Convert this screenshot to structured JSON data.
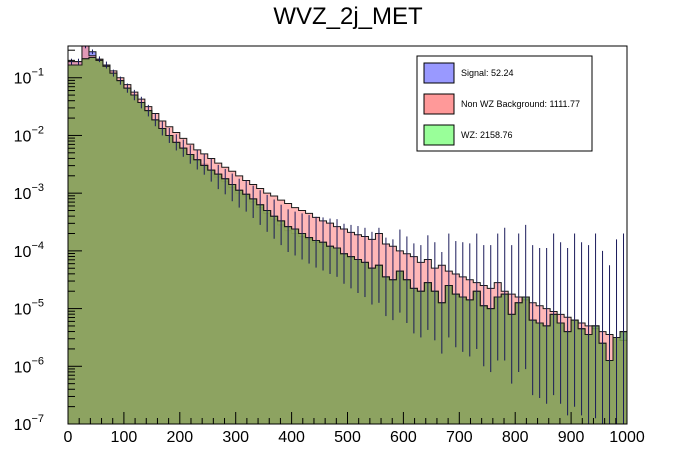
{
  "chart_data": {
    "type": "area",
    "title": "WVZ_2j_MET",
    "xlabel": "",
    "ylabel": "",
    "xlim": [
      0,
      1000
    ],
    "ylim_log10": [
      -7,
      -0.45
    ],
    "y_scale": "log",
    "bin_width": 12.5,
    "x_ticks": [
      0,
      100,
      200,
      300,
      400,
      500,
      600,
      700,
      800,
      900,
      1000
    ],
    "x_tick_labels": [
      "0",
      "100",
      "200",
      "300",
      "400",
      "500",
      "600",
      "700",
      "800",
      "900",
      "1000"
    ],
    "y_ticks": [
      {
        "base": "10",
        "exp": "−7",
        "value_log10": -7
      },
      {
        "base": "10",
        "exp": "−6",
        "value_log10": -6
      },
      {
        "base": "10",
        "exp": "−5",
        "value_log10": -5
      },
      {
        "base": "10",
        "exp": "−4",
        "value_log10": -4
      },
      {
        "base": "10",
        "exp": "−3",
        "value_log10": -3
      },
      {
        "base": "10",
        "exp": "−2",
        "value_log10": -2
      },
      {
        "base": "10",
        "exp": "−1",
        "value_log10": -1
      }
    ],
    "legend_position": "top-right",
    "series": [
      {
        "name": "WZ",
        "label": "WZ: 2158.76",
        "color": "#99ff99",
        "values_log10": [
          -0.78,
          -0.78,
          -0.67,
          -0.65,
          -0.7,
          -0.8,
          -0.92,
          -1.05,
          -1.18,
          -1.3,
          -1.43,
          -1.57,
          -1.73,
          -1.88,
          -2.0,
          -2.12,
          -2.22,
          -2.33,
          -2.42,
          -2.52,
          -2.6,
          -2.67,
          -2.75,
          -2.85,
          -2.95,
          -3.02,
          -3.1,
          -3.2,
          -3.3,
          -3.4,
          -3.48,
          -3.58,
          -3.62,
          -3.7,
          -3.77,
          -3.82,
          -3.85,
          -3.92,
          -3.95,
          -4.05,
          -4.1,
          -4.15,
          -4.2,
          -4.3,
          -4.25,
          -4.45,
          -4.5,
          -4.35,
          -4.5,
          -4.65,
          -4.7,
          -4.55,
          -4.7,
          -4.9,
          -4.6,
          -4.75,
          -4.8,
          -4.85,
          -4.7,
          -4.95,
          -5.0,
          -4.8,
          -4.75,
          -5.1,
          -4.9,
          -4.8,
          -5.2,
          -5.25,
          -5.3,
          -5.1,
          -5.25,
          -5.4,
          -5.2,
          -5.35,
          -5.45,
          -5.3,
          -5.6,
          -5.9,
          -5.5,
          -5.4
        ]
      },
      {
        "name": "Non WZ Background",
        "label": "Non WZ Background: 1111.77",
        "color": "#ff9999",
        "values_log10": [
          -0.72,
          -0.72,
          -0.45,
          -0.62,
          -0.68,
          -0.78,
          -0.88,
          -1.0,
          -1.12,
          -1.25,
          -1.37,
          -1.5,
          -1.62,
          -1.75,
          -1.85,
          -1.95,
          -2.05,
          -2.15,
          -2.25,
          -2.32,
          -2.4,
          -2.48,
          -2.55,
          -2.62,
          -2.7,
          -2.78,
          -2.85,
          -2.92,
          -3.0,
          -3.05,
          -3.12,
          -3.18,
          -3.25,
          -3.3,
          -3.35,
          -3.42,
          -3.48,
          -3.52,
          -3.58,
          -3.62,
          -3.68,
          -3.72,
          -3.75,
          -3.8,
          -3.7,
          -3.88,
          -3.92,
          -4.0,
          -4.05,
          -4.1,
          -4.2,
          -4.15,
          -4.3,
          -4.25,
          -4.35,
          -4.4,
          -4.45,
          -4.5,
          -4.55,
          -4.6,
          -4.65,
          -4.55,
          -4.7,
          -4.75,
          -4.8,
          -4.85,
          -4.9,
          -4.95,
          -5.0,
          -5.05,
          -5.1,
          -5.15,
          -5.2,
          -5.25,
          -5.3,
          -5.35,
          -5.4,
          -5.45,
          -5.5,
          -5.55
        ]
      },
      {
        "name": "Signal",
        "label": "Signal: 52.24",
        "color": "#9999ff",
        "values_log10": [
          -0.72,
          -0.72,
          -0.45,
          -0.55,
          -0.68,
          -0.78,
          -0.92,
          -1.05,
          -1.18,
          -1.3,
          -1.43,
          -1.57,
          -1.73,
          -1.88,
          -2.0,
          -2.12,
          -2.22,
          -2.33,
          -2.42,
          -2.5,
          -2.6,
          -2.72,
          -2.8,
          -2.9,
          -3.0,
          -3.05,
          -3.15,
          -3.25,
          -3.35,
          -3.45,
          -3.55,
          -3.65,
          -3.7,
          -3.75,
          -3.8,
          -3.85,
          -3.88,
          -3.92,
          -3.95,
          -4.05,
          -4.1,
          -4.15,
          -4.2,
          -4.3,
          -4.25,
          -4.45,
          -4.5,
          -4.35,
          -4.5,
          -4.65,
          -4.7,
          -4.55,
          -4.7,
          -4.9,
          -4.6,
          -4.75,
          -4.8,
          -4.85,
          -4.7,
          -4.95,
          -5.0,
          -4.8,
          -4.75,
          -5.1,
          -4.9,
          -4.8,
          -5.2,
          -5.25,
          -5.3,
          -5.1,
          -5.25,
          -5.4,
          -5.2,
          -5.35,
          -5.45,
          -5.3,
          -5.6,
          -5.9,
          -5.5,
          -5.4
        ],
        "errors_log10": [
          0.05,
          0.05,
          0.04,
          0.04,
          0.05,
          0.06,
          0.06,
          0.07,
          0.08,
          0.09,
          0.1,
          0.1,
          0.11,
          0.12,
          0.13,
          0.14,
          0.15,
          0.16,
          0.17,
          0.18,
          0.2,
          0.21,
          0.22,
          0.24,
          0.25,
          0.27,
          0.28,
          0.3,
          0.32,
          0.34,
          0.35,
          0.37,
          0.38,
          0.4,
          0.42,
          0.44,
          0.46,
          0.48,
          0.5,
          0.52,
          0.55,
          0.58,
          0.6,
          0.63,
          0.65,
          0.68,
          0.7,
          0.72,
          0.75,
          0.78,
          0.8,
          0.82,
          0.85,
          0.88,
          0.9,
          0.92,
          0.95,
          0.98,
          1.0,
          1.05,
          1.1,
          1.1,
          1.15,
          1.2,
          1.2,
          1.25,
          1.3,
          1.3,
          1.35,
          1.4,
          1.4,
          1.45,
          1.5,
          1.5,
          1.55,
          1.6,
          1.6,
          1.65,
          1.7,
          1.7
        ]
      }
    ]
  }
}
